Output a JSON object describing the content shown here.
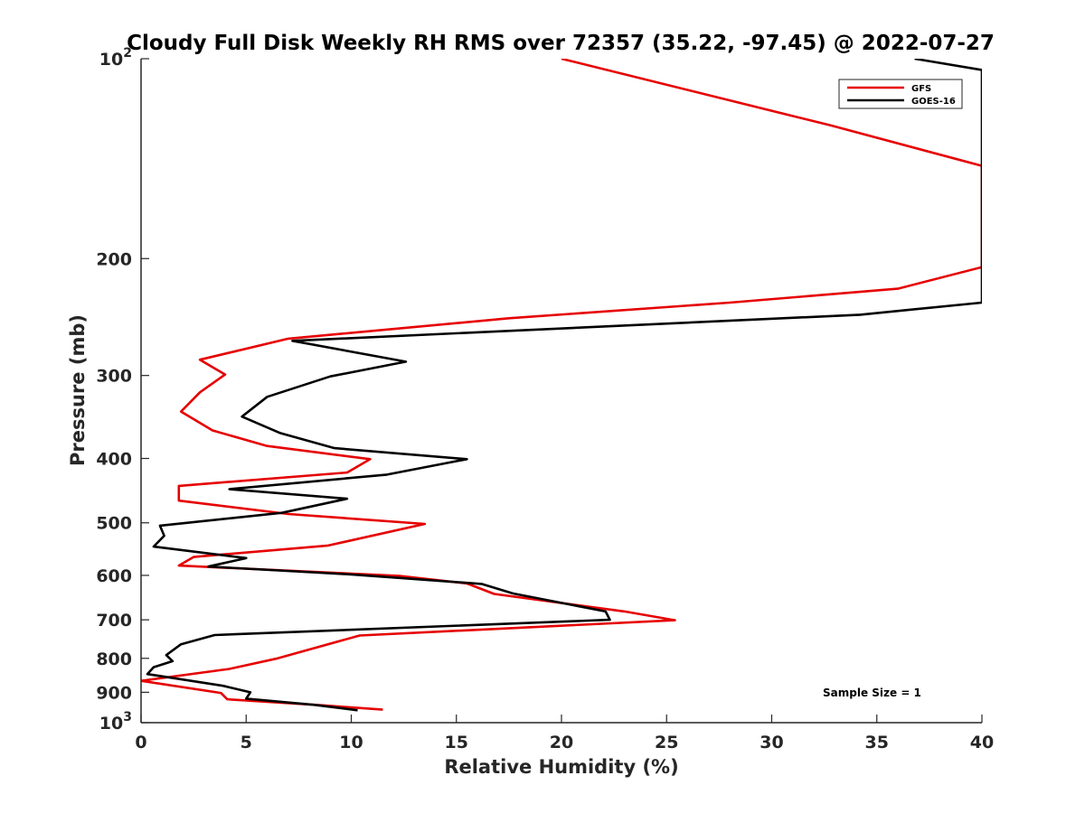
{
  "chart_data": {
    "type": "line",
    "title": "Cloudy Full Disk Weekly RH RMS over 72357 (35.22, -97.45) @ 2022-07-27",
    "xlabel": "Relative Humidity (%)",
    "ylabel": "Pressure (mb)",
    "xlim": [
      0,
      40
    ],
    "ylim": [
      100,
      1000
    ],
    "yscale": "log",
    "y_reversed": true,
    "grid": false,
    "legend_position": "top-right",
    "x_ticks": [
      "0",
      "5",
      "10",
      "15",
      "20",
      "25",
      "30",
      "35",
      "40"
    ],
    "y_ticks": [
      {
        "value": 100,
        "base": "10",
        "exp": "2"
      },
      {
        "value": 200,
        "label": "200"
      },
      {
        "value": 300,
        "label": "300"
      },
      {
        "value": 400,
        "label": "400"
      },
      {
        "value": 500,
        "label": "500"
      },
      {
        "value": 600,
        "label": "600"
      },
      {
        "value": 700,
        "label": "700"
      },
      {
        "value": 800,
        "label": "800"
      },
      {
        "value": 900,
        "label": "900"
      },
      {
        "value": 1000,
        "base": "10",
        "exp": "3"
      }
    ],
    "series": [
      {
        "name": "GFS",
        "color": "#e60000",
        "points": [
          [
            20.0,
            100
          ],
          [
            32.8,
            126
          ],
          [
            40.0,
            145
          ],
          [
            40.0,
            206
          ],
          [
            36.0,
            222
          ],
          [
            28.0,
            233
          ],
          [
            17.5,
            246
          ],
          [
            7.0,
            264
          ],
          [
            2.8,
            284
          ],
          [
            4.0,
            299
          ],
          [
            2.8,
            318
          ],
          [
            1.9,
            340
          ],
          [
            3.4,
            363
          ],
          [
            6.0,
            383
          ],
          [
            10.9,
            401
          ],
          [
            9.8,
            420
          ],
          [
            1.8,
            440
          ],
          [
            1.8,
            463
          ],
          [
            7.0,
            485
          ],
          [
            13.5,
            502
          ],
          [
            8.9,
            541
          ],
          [
            2.5,
            563
          ],
          [
            1.8,
            580
          ],
          [
            12.3,
            601
          ],
          [
            15.5,
            617
          ],
          [
            16.8,
            640
          ],
          [
            23.0,
            680
          ],
          [
            25.4,
            701
          ],
          [
            10.4,
            739
          ],
          [
            6.5,
            800
          ],
          [
            4.2,
            830
          ],
          [
            0.0,
            865
          ],
          [
            3.8,
            902
          ],
          [
            4.1,
            922
          ],
          [
            8.5,
            941
          ],
          [
            11.5,
            956
          ]
        ]
      },
      {
        "name": "GOES-16",
        "color": "#000000",
        "points": [
          [
            36.8,
            100
          ],
          [
            40.0,
            104
          ],
          [
            40.0,
            233
          ],
          [
            34.2,
            243
          ],
          [
            7.2,
            266
          ],
          [
            12.6,
            286
          ],
          [
            9.0,
            301
          ],
          [
            6.0,
            323
          ],
          [
            4.8,
            346
          ],
          [
            6.6,
            366
          ],
          [
            9.2,
            386
          ],
          [
            15.5,
            401
          ],
          [
            11.7,
            423
          ],
          [
            4.2,
            445
          ],
          [
            9.8,
            460
          ],
          [
            6.7,
            483
          ],
          [
            0.9,
            505
          ],
          [
            1.1,
            523
          ],
          [
            0.6,
            543
          ],
          [
            5.0,
            565
          ],
          [
            3.2,
            582
          ],
          [
            10.0,
            598
          ],
          [
            16.2,
            618
          ],
          [
            17.7,
            639
          ],
          [
            22.1,
            680
          ],
          [
            22.3,
            700
          ],
          [
            3.5,
            738
          ],
          [
            1.9,
            762
          ],
          [
            1.2,
            791
          ],
          [
            1.5,
            808
          ],
          [
            0.6,
            825
          ],
          [
            0.3,
            845
          ],
          [
            3.9,
            880
          ],
          [
            5.2,
            900
          ],
          [
            5.0,
            920
          ],
          [
            8.2,
            940
          ],
          [
            10.3,
            958
          ]
        ]
      }
    ],
    "annotation": "Sample Size = 1"
  }
}
